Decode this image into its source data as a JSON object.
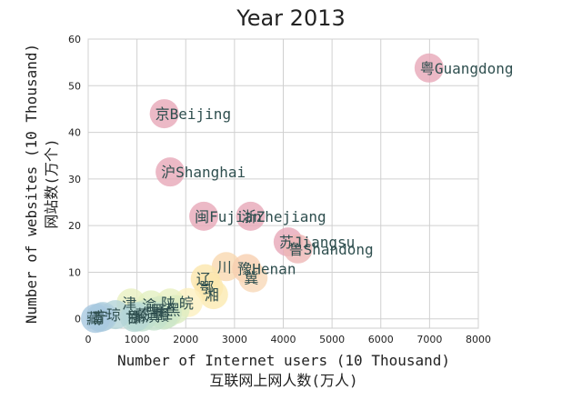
{
  "chart_data": {
    "type": "scatter",
    "title": "Year 2013",
    "xlabel": "Number of Internet users (10 Thousand)",
    "xlabel_cn": "互联网上网人数(万人)",
    "ylabel": "Number of websites (10 Thousand)",
    "ylabel_cn": "网站数(万个)",
    "xlim": [
      0,
      8000
    ],
    "ylim": [
      -2,
      60
    ],
    "xticks": [
      0,
      1000,
      2000,
      3000,
      4000,
      5000,
      6000,
      7000,
      8000
    ],
    "yticks": [
      0,
      10,
      20,
      30,
      40,
      50,
      60
    ],
    "grid": true,
    "points": [
      {
        "label": "粤Guangdong",
        "x": 6990,
        "y": 53.8,
        "color": "#e7a8b8"
      },
      {
        "label": "京Beijing",
        "x": 1560,
        "y": 44.0,
        "color": "#e7a8b8"
      },
      {
        "label": "沪Shanghai",
        "x": 1680,
        "y": 31.5,
        "color": "#e7a8b8"
      },
      {
        "label": "闽Fujian",
        "x": 2370,
        "y": 22.0,
        "color": "#e7a8b8"
      },
      {
        "label": "浙Zhejiang",
        "x": 3330,
        "y": 22.0,
        "color": "#e7a8b8"
      },
      {
        "label": "苏Jiangsu",
        "x": 4100,
        "y": 16.5,
        "color": "#e7a8b8"
      },
      {
        "label": "鲁Shandong",
        "x": 4300,
        "y": 15.0,
        "color": "#edb7b5"
      },
      {
        "label": "川",
        "x": 2830,
        "y": 11.2,
        "color": "#f9d8b0"
      },
      {
        "label": "豫Henan",
        "x": 3250,
        "y": 10.8,
        "color": "#f7d0b0"
      },
      {
        "label": "冀",
        "x": 3380,
        "y": 8.8,
        "color": "#f7d8b8"
      },
      {
        "label": "辽",
        "x": 2400,
        "y": 8.6,
        "color": "#fbe6ad"
      },
      {
        "label": "鄂",
        "x": 2470,
        "y": 6.8,
        "color": "#fbe6ad"
      },
      {
        "label": "湘",
        "x": 2570,
        "y": 5.2,
        "color": "#fbeab0"
      },
      {
        "label": "皖",
        "x": 2050,
        "y": 3.5,
        "color": "#fdf0bf"
      },
      {
        "label": "津",
        "x": 880,
        "y": 3.4,
        "color": "#e8f0c0"
      },
      {
        "label": "渝",
        "x": 1290,
        "y": 3.0,
        "color": "#e2f0c0"
      },
      {
        "label": "陕",
        "x": 1680,
        "y": 3.4,
        "color": "#e8f0c0"
      },
      {
        "label": "黑",
        "x": 1780,
        "y": 2.0,
        "color": "#dcecc0"
      },
      {
        "label": "吉",
        "x": 1360,
        "y": 1.5,
        "color": "#d6eac4"
      },
      {
        "label": "桂",
        "x": 1620,
        "y": 1.2,
        "color": "#d2e8c6"
      },
      {
        "label": "晋",
        "x": 1480,
        "y": 1.8,
        "color": "#d6eac4"
      },
      {
        "label": "赣",
        "x": 1550,
        "y": 0.8,
        "color": "#cce6c8"
      },
      {
        "label": "蒙",
        "x": 1150,
        "y": 0.9,
        "color": "#c8e4ca"
      },
      {
        "label": "滇",
        "x": 1350,
        "y": 0.6,
        "color": "#c4e2cc"
      },
      {
        "label": "黔",
        "x": 1100,
        "y": 0.4,
        "color": "#c0e0ce"
      },
      {
        "label": "新",
        "x": 1000,
        "y": 0.5,
        "color": "#bcdcd2"
      },
      {
        "label": "甘",
        "x": 950,
        "y": 0.3,
        "color": "#b8d8d4"
      },
      {
        "label": "琼",
        "x": 560,
        "y": 0.9,
        "color": "#b4d4d8"
      },
      {
        "label": "宁",
        "x": 300,
        "y": 0.5,
        "color": "#b0d0dc"
      },
      {
        "label": "青",
        "x": 250,
        "y": 0.3,
        "color": "#acccde"
      },
      {
        "label": "藏",
        "x": 150,
        "y": 0.1,
        "color": "#a8c8e0"
      }
    ]
  }
}
